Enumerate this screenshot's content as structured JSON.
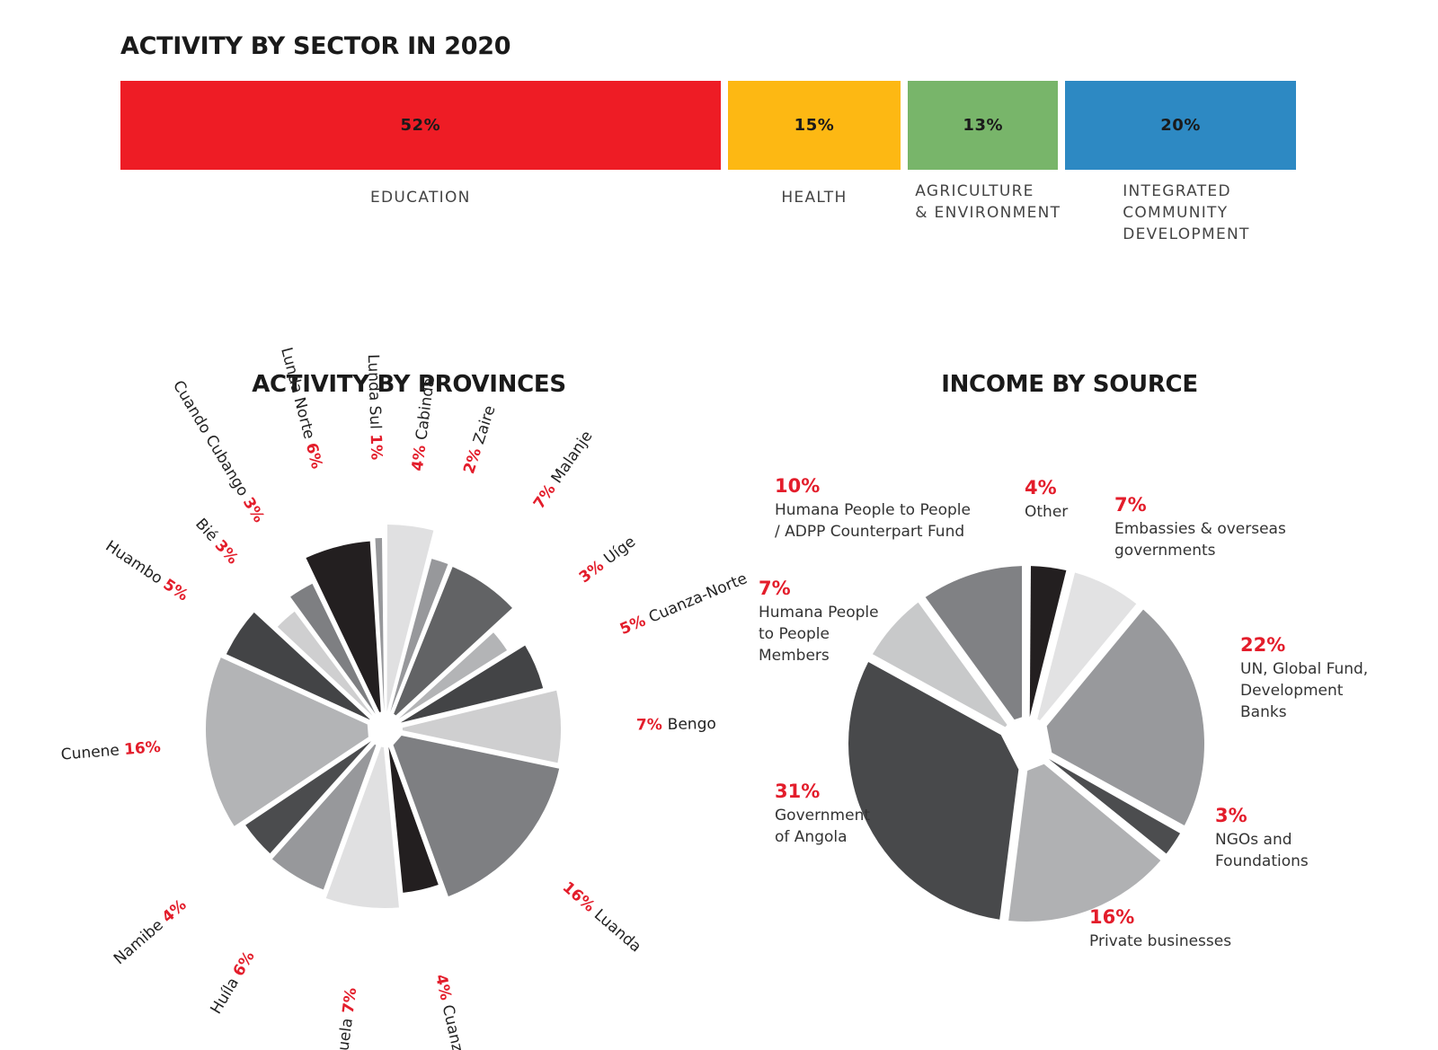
{
  "chart_data": [
    {
      "type": "bar",
      "title": "ACTIVITY BY SECTOR  IN 2020",
      "categories": [
        "EDUCATION",
        "HEALTH",
        "AGRICULTURE\n& ENVIRONMENT",
        "INTEGRATED\nCOMMUNITY\nDEVELOPMENT"
      ],
      "values": [
        52,
        15,
        13,
        20
      ],
      "value_labels": [
        "52%",
        "15%",
        "13%",
        "20%"
      ],
      "colors": [
        "#ee1c25",
        "#fdb813",
        "#78b56a",
        "#2d89c3"
      ],
      "orientation": "stacked-horizontal"
    },
    {
      "type": "pie",
      "title": "ACTIVITY BY PROVINCES",
      "categories": [
        "Cabinda",
        "Zaire",
        "Malanje",
        "Uíge",
        "Cuanza-Norte",
        "Bengo",
        "Luanda",
        "Cuanza-Sul",
        "Benguela",
        "Huíla",
        "Namibe",
        "Cunene",
        "Huambo",
        "Bié",
        "Cuando Cubango",
        "Lunda Norte",
        "Lunda Sul"
      ],
      "values": [
        4,
        2,
        7,
        3,
        5,
        7,
        16,
        4,
        7,
        6,
        4,
        16,
        5,
        3,
        3,
        6,
        1
      ],
      "value_labels": [
        "4%",
        "2%",
        "7%",
        "3%",
        "5%",
        "7%",
        "16%",
        "4%",
        "7%",
        "6%",
        "4%",
        "16%",
        "5%",
        "3%",
        "3%",
        "6%",
        "1%"
      ],
      "colors": [
        "#e0e0e1",
        "#97989b",
        "#626365",
        "#b3b4b6",
        "#434446",
        "#cfcfd0",
        "#7e7f82",
        "#231f20",
        "#e0e0e1",
        "#97989b",
        "#4b4c4e",
        "#b3b4b6",
        "#434446",
        "#cfcfd0",
        "#7e7f82",
        "#231f20",
        "#97989b"
      ]
    },
    {
      "type": "pie",
      "title": "INCOME BY SOURCE",
      "categories": [
        "Other",
        "Embassies & overseas\ngovernments",
        "UN, Global Fund,\nDevelopment\nBanks",
        "NGOs and\nFoundations",
        "Private businesses",
        "Government\nof Angola",
        "Humana People\nto People\nMembers",
        "Humana People to People\n/ ADPP Counterpart Fund"
      ],
      "values": [
        4,
        7,
        22,
        3,
        16,
        31,
        7,
        10
      ],
      "value_labels": [
        "4%",
        "7%",
        "22%",
        "3%",
        "16%",
        "31%",
        "7%",
        "10%"
      ],
      "colors": [
        "#231f20",
        "#e2e2e3",
        "#98999c",
        "#4c4d4f",
        "#b0b1b3",
        "#48494b",
        "#c8c9ca",
        "#808184"
      ]
    }
  ]
}
